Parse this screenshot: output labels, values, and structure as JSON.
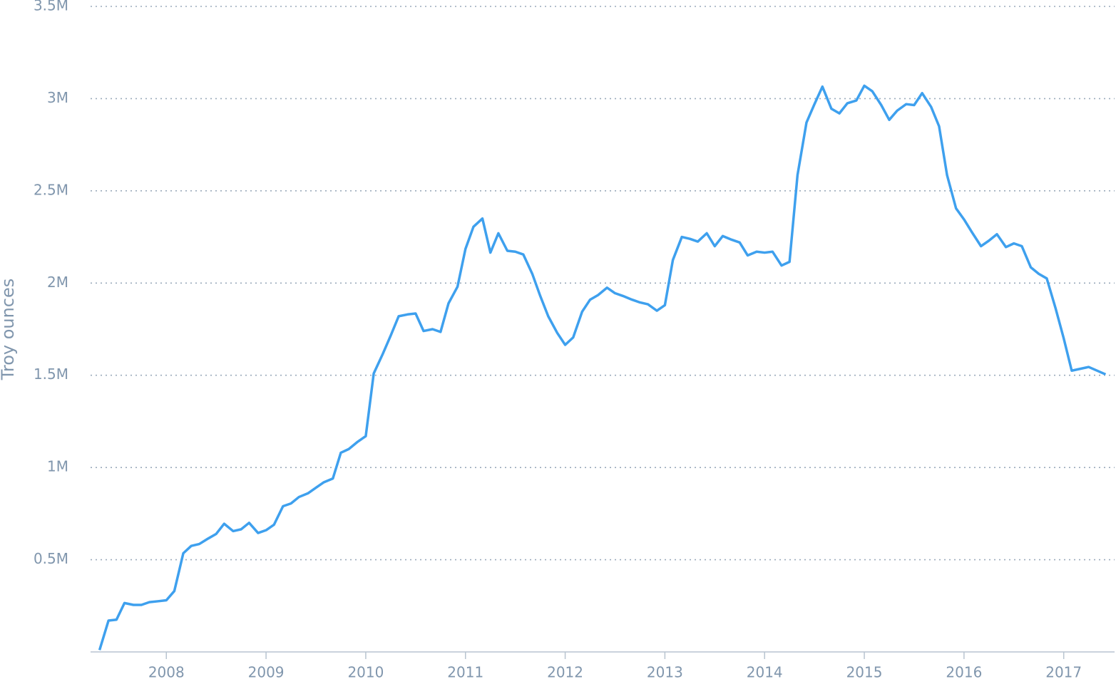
{
  "chart_data": {
    "type": "line",
    "y_label": "Troy ounces",
    "x": [
      2007.33,
      2007.42,
      2007.5,
      2007.58,
      2007.67,
      2007.75,
      2007.83,
      2007.92,
      2008,
      2008.08,
      2008.17,
      2008.25,
      2008.33,
      2008.42,
      2008.5,
      2008.58,
      2008.67,
      2008.75,
      2008.83,
      2008.92,
      2009,
      2009.08,
      2009.17,
      2009.25,
      2009.33,
      2009.42,
      2009.5,
      2009.58,
      2009.67,
      2009.75,
      2009.83,
      2009.92,
      2010,
      2010.08,
      2010.17,
      2010.25,
      2010.33,
      2010.42,
      2010.5,
      2010.58,
      2010.67,
      2010.75,
      2010.83,
      2010.92,
      2011,
      2011.08,
      2011.17,
      2011.25,
      2011.33,
      2011.42,
      2011.5,
      2011.58,
      2011.67,
      2011.75,
      2011.83,
      2011.92,
      2012,
      2012.08,
      2012.17,
      2012.25,
      2012.33,
      2012.42,
      2012.5,
      2012.58,
      2012.67,
      2012.75,
      2012.83,
      2012.92,
      2013,
      2013.08,
      2013.17,
      2013.25,
      2013.33,
      2013.42,
      2013.5,
      2013.58,
      2013.67,
      2013.75,
      2013.83,
      2013.92,
      2014,
      2014.08,
      2014.17,
      2014.25,
      2014.33,
      2014.42,
      2014.5,
      2014.58,
      2014.67,
      2014.75,
      2014.83,
      2014.92,
      2015,
      2015.08,
      2015.17,
      2015.25,
      2015.33,
      2015.42,
      2015.5,
      2015.58,
      2015.67,
      2015.75,
      2015.83,
      2015.92,
      2016,
      2016.08,
      2016.17,
      2016.25,
      2016.33,
      2016.42,
      2016.5,
      2016.58,
      2016.67,
      2016.75,
      2016.83,
      2016.92,
      2017,
      2017.08,
      2017.25,
      2017.42
    ],
    "series": [
      {
        "color": "#3ea0ee",
        "values": [
          10000,
          170000,
          175000,
          265000,
          255000,
          255000,
          270000,
          275000,
          280000,
          330000,
          535000,
          575000,
          585000,
          615000,
          640000,
          695000,
          655000,
          665000,
          700000,
          645000,
          660000,
          690000,
          790000,
          805000,
          840000,
          860000,
          890000,
          920000,
          940000,
          1080000,
          1100000,
          1140000,
          1170000,
          1510000,
          1615000,
          1715000,
          1820000,
          1830000,
          1835000,
          1740000,
          1750000,
          1735000,
          1890000,
          1980000,
          2185000,
          2305000,
          2350000,
          2165000,
          2270000,
          2175000,
          2170000,
          2155000,
          2050000,
          1930000,
          1820000,
          1730000,
          1665000,
          1705000,
          1845000,
          1910000,
          1935000,
          1975000,
          1945000,
          1930000,
          1910000,
          1895000,
          1885000,
          1850000,
          1880000,
          2125000,
          2250000,
          2240000,
          2225000,
          2270000,
          2200000,
          2255000,
          2235000,
          2220000,
          2150000,
          2170000,
          2165000,
          2170000,
          2095000,
          2115000,
          2585000,
          2870000,
          2970000,
          3065000,
          2945000,
          2920000,
          2975000,
          2990000,
          3070000,
          3040000,
          2965000,
          2885000,
          2935000,
          2970000,
          2965000,
          3030000,
          2955000,
          2850000,
          2585000,
          2405000,
          2345000,
          2275000,
          2200000,
          2230000,
          2265000,
          2195000,
          2215000,
          2200000,
          2085000,
          2050000,
          2025000,
          1860000,
          1700000,
          1525000,
          1545000,
          1505000
        ]
      }
    ],
    "xlim": [
      2007.24,
      2017.51
    ],
    "xticks": [
      2008,
      2009,
      2010,
      2011,
      2012,
      2013,
      2014,
      2015,
      2016,
      2017
    ],
    "ylim": [
      0,
      3500000
    ],
    "yticks": [
      {
        "value": 500000,
        "label": "0.5M"
      },
      {
        "value": 1000000,
        "label": "1M"
      },
      {
        "value": 1500000,
        "label": "1.5M"
      },
      {
        "value": 2000000,
        "label": "2M"
      },
      {
        "value": 2500000,
        "label": "2.5M"
      },
      {
        "value": 3000000,
        "label": "3M"
      },
      {
        "value": 3500000,
        "label": "3.5M"
      }
    ],
    "grid": true
  }
}
